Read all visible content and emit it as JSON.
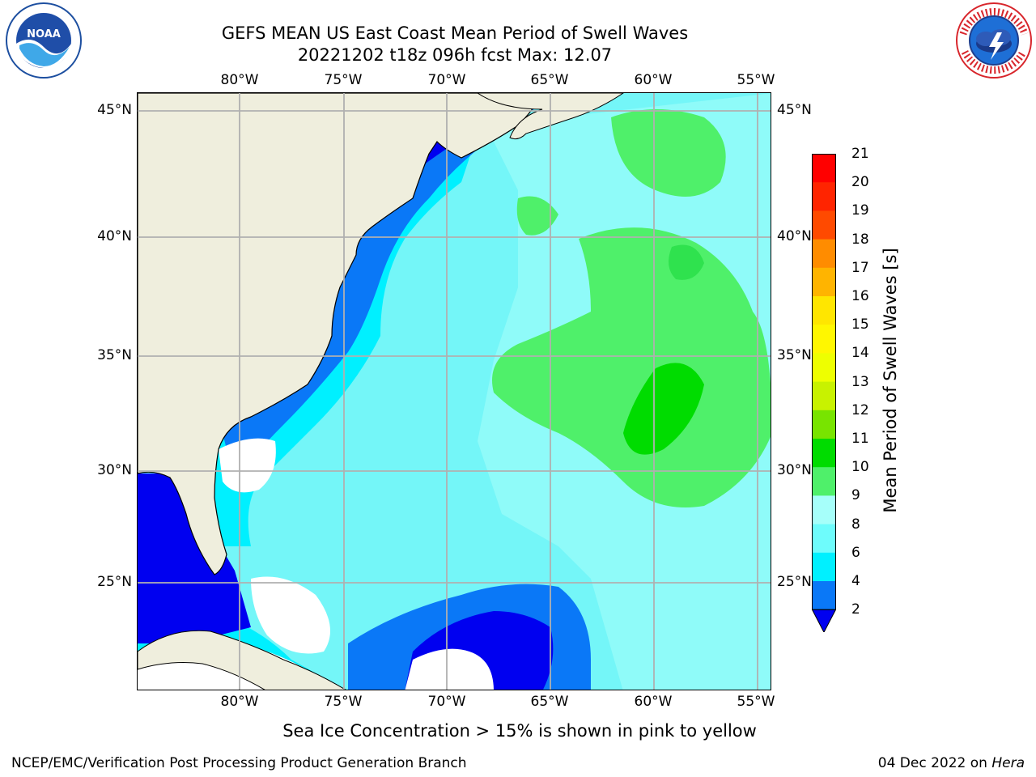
{
  "title_line1": "GEFS MEAN US East Coast Mean Period of Swell Waves",
  "title_line2": "20221202 t18z 096h fcst   Max: 12.07",
  "logos": {
    "left": "noaa-logo",
    "right": "national-weather-service-logo"
  },
  "map": {
    "projection": "lat-lon",
    "lon_range": [
      "85°W",
      "54°W"
    ],
    "lat_range": [
      "20.5°N",
      "45.8°N"
    ],
    "lon_ticks": [
      "80°W",
      "75°W",
      "70°W",
      "65°W",
      "60°W",
      "55°W"
    ],
    "lat_ticks": [
      "45°N",
      "40°N",
      "35°N",
      "30°N",
      "25°N"
    ],
    "grid": true,
    "colors": {
      "land": "#efeedd",
      "no_data": "#ffffff",
      "coastline": "#000000",
      "gridline": "#b0b0b0"
    }
  },
  "colorbar": {
    "title": "Mean Period of Swell Waves [s]",
    "labels": [
      "21",
      "20",
      "19",
      "18",
      "17",
      "16",
      "15",
      "14",
      "13",
      "12",
      "11",
      "10",
      "9",
      "8",
      "6",
      "4",
      "2"
    ],
    "bins": [
      {
        "range": "20-21",
        "color": "#ff0000"
      },
      {
        "range": "19-20",
        "color": "#ff2400"
      },
      {
        "range": "18-19",
        "color": "#ff4a00"
      },
      {
        "range": "17-18",
        "color": "#ff8c00"
      },
      {
        "range": "16-17",
        "color": "#ffb400"
      },
      {
        "range": "15-16",
        "color": "#ffe600"
      },
      {
        "range": "14-15",
        "color": "#fff700"
      },
      {
        "range": "13-14",
        "color": "#eeff00"
      },
      {
        "range": "12-13",
        "color": "#c8f200"
      },
      {
        "range": "11-12",
        "color": "#78e400"
      },
      {
        "range": "10-11",
        "color": "#00dc00"
      },
      {
        "range": "9-10",
        "color": "#4ff06a"
      },
      {
        "range": "8-9",
        "color": "#a6fffa"
      },
      {
        "range": "6-8",
        "color": "#6efcfc"
      },
      {
        "range": "4-6",
        "color": "#00f0ff"
      },
      {
        "range": "2-4",
        "color": "#0a78f7"
      },
      {
        "range": "<2",
        "color": "#0000f0"
      }
    ],
    "extend": "min"
  },
  "footnote": "Sea Ice Concentration > 15% is shown in pink to yellow",
  "credit_left": "NCEP/EMC/Verification Post Processing Product Generation Branch",
  "credit_date": "04 Dec 2022 on ",
  "credit_machine": "Hera"
}
